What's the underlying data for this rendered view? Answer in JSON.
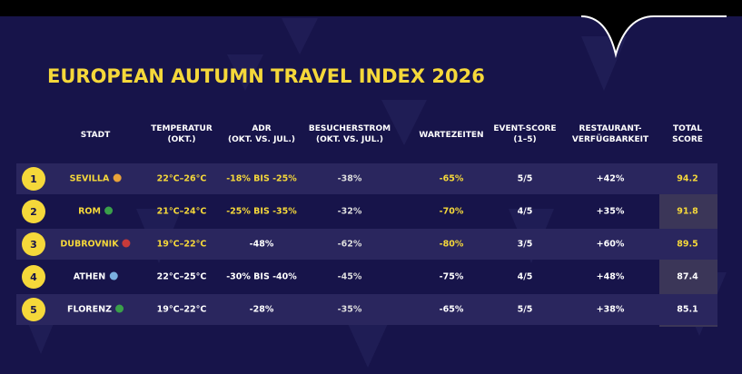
{
  "title": "EUROPEAN AUTUMN TRAVEL INDEX 2026",
  "table": {
    "headers": [
      [
        "STADT"
      ],
      [
        "TEMPERATUR",
        "(OKT.)"
      ],
      [
        "ADR",
        "(OKT. VS. JUL.)"
      ],
      [
        "BESUCHERSTROM",
        "(OKT. VS. JUL.)"
      ],
      [
        "WARTEZEITEN"
      ],
      [
        "EVENT-SCORE",
        "(1–5)"
      ],
      [
        "RESTAURANT-",
        "VERFÜGBARKEIT"
      ],
      [
        "TOTAL",
        "SCORE"
      ]
    ],
    "rows": [
      [
        "1",
        "SEVILLA",
        "22°C–26°C",
        "-18% BIS -25%",
        "-38%",
        "-65%",
        "5/5",
        "+42%",
        "94.2"
      ],
      [
        "2",
        "ROM",
        "21°C–24°C",
        "-25% BIS -35%",
        "-32%",
        "-70%",
        "4/5",
        "+35%",
        "91.8"
      ],
      [
        "3",
        "DUBROVNIK",
        "19°C–22°C",
        "-48%",
        "-62%",
        "-80%",
        "3/5",
        "+60%",
        "89.5"
      ],
      [
        "4",
        "ATHEN",
        "22°C–25°C",
        "-30% BIS -40%",
        "-45%",
        "-75%",
        "4/5",
        "+48%",
        "87.4"
      ],
      [
        "5",
        "FLORENZ",
        "19°C–22°C",
        "-28%",
        "-35%",
        "-65%",
        "5/5",
        "+38%",
        "85.1"
      ]
    ]
  }
}
